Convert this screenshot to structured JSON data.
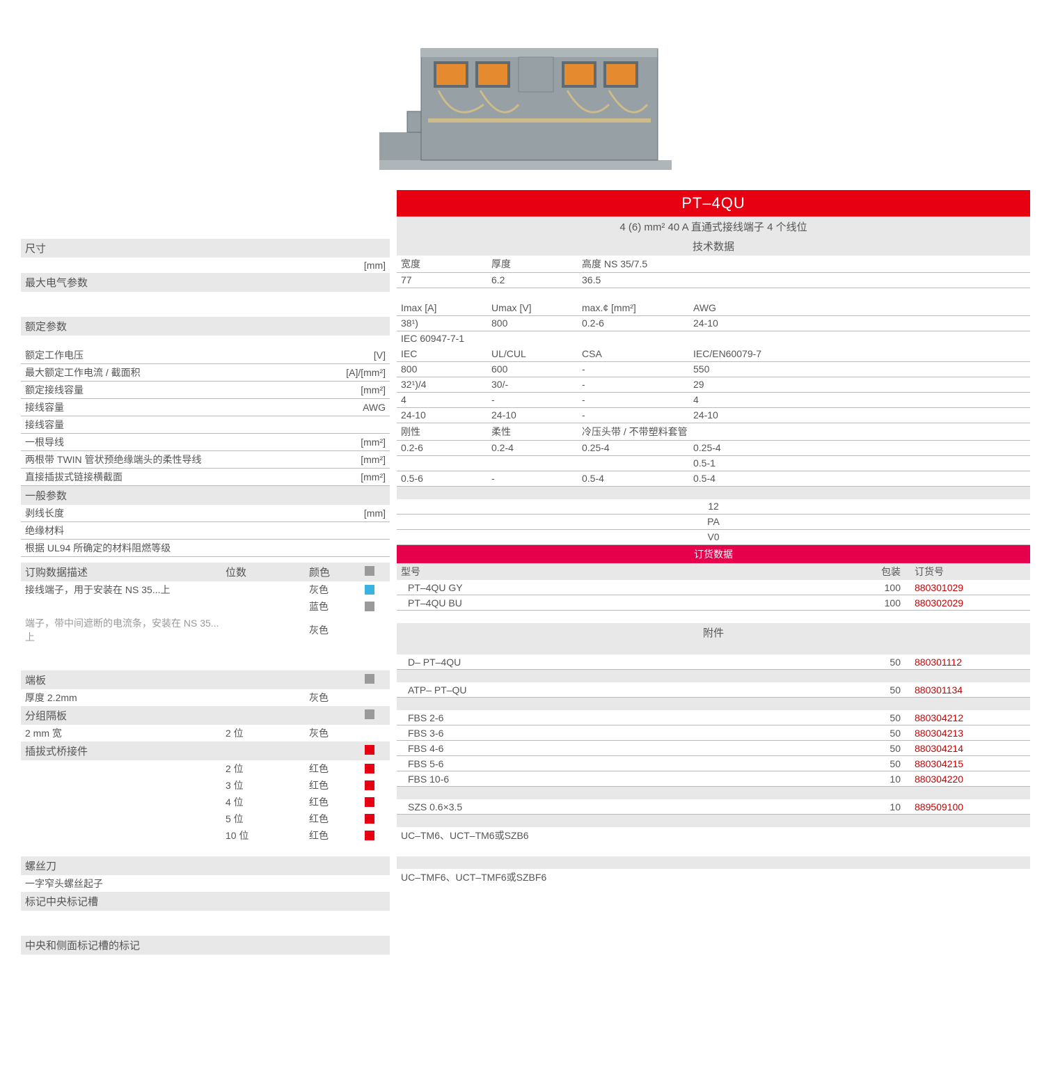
{
  "colors": {
    "title_bg": "#e60012",
    "pink_bg": "#e6004c",
    "gray_bg": "#e8e8e8",
    "text": "#555555",
    "partno": "#c00000",
    "border": "#bbbbbb",
    "swatch_gray": "#9a9a9a",
    "swatch_blue": "#3bb3e0",
    "swatch_red": "#e60012",
    "illus_body": "#96a0a5",
    "illus_body_light": "#aeb6ba",
    "illus_orange": "#e58a2e",
    "illus_dark": "#5f6b70"
  },
  "product": {
    "title": "PT–4QU",
    "subtitle": "4 (6) mm²  40 A  直通式接线端子  4 个线位"
  },
  "left": {
    "dim_header": "尺寸",
    "dim_unit": "[mm]",
    "elec_header": "最大电气参数",
    "rated_header": "额定参数",
    "rows1": [
      {
        "label": "额定工作电压",
        "unit": "[V]"
      },
      {
        "label": "最大额定工作电流 / 截面积",
        "unit": "[A]/[mm²]"
      },
      {
        "label": "额定接线容量",
        "unit": "[mm²]"
      },
      {
        "label": "接线容量",
        "unit": "AWG"
      },
      {
        "label": "接线容量",
        "unit": ""
      },
      {
        "label": "一根导线",
        "unit": "[mm²]"
      },
      {
        "label": "两根带 TWIN 管状预绝缘端头的柔性导线",
        "unit": "[mm²]"
      },
      {
        "label": "直接插拔式链接横截面",
        "unit": "[mm²]"
      }
    ],
    "gen_header": "一般参数",
    "rows2": [
      {
        "label": "剥线长度",
        "unit": "[mm]"
      },
      {
        "label": "绝缘材料",
        "unit": ""
      },
      {
        "label": "根据 UL94 所确定的材料阻燃等级",
        "unit": ""
      }
    ],
    "desc_head": {
      "d1": "订购数据描述",
      "d2": "位数",
      "d3": "颜色"
    },
    "desc_rows_top": [
      {
        "d1": "接线端子，用于安装在 NS 35...上",
        "d3": "灰色",
        "sw": "#3bb3e0"
      },
      {
        "d1": "",
        "d3": "蓝色",
        "sw": "#9a9a9a"
      },
      {
        "d1": "端子，带中间遮断的电流条，安装在 NS 35...上",
        "d3": "灰色",
        "sw": "",
        "light": true
      }
    ],
    "endplate_header": "端板",
    "endplate_row": {
      "d1": "厚度 2.2mm",
      "d3": "灰色"
    },
    "sep_header": "分组隔板",
    "sep_row": {
      "d1": "2 mm 宽",
      "d2": "2 位",
      "d3": "灰色"
    },
    "bridge_header": "插拔式桥接件",
    "bridge_rows": [
      {
        "d2": "2 位",
        "d3": "红色"
      },
      {
        "d2": "3 位",
        "d3": "红色"
      },
      {
        "d2": "4 位",
        "d3": "红色"
      },
      {
        "d2": "5 位",
        "d3": "红色"
      },
      {
        "d2": "10 位",
        "d3": "红色"
      }
    ],
    "screwdriver_header": "螺丝刀",
    "screwdriver_row": "一字窄头螺丝起子",
    "mark_center_header": "标记中央标记槽",
    "mark_side_header": "中央和侧面标记槽的标记"
  },
  "right": {
    "tech_header": "技术数据",
    "dim_rows": [
      {
        "c1": "宽度",
        "c2": "厚度",
        "c3": "高度 NS 35/7.5",
        "c4": ""
      },
      {
        "c1": "77",
        "c2": "6.2",
        "c3": "36.5",
        "c4": ""
      }
    ],
    "elec_rows": [
      {
        "c1": "Imax  [A]",
        "c2": "Umax  [V]",
        "c3": "max.¢  [mm²]",
        "c4": "AWG"
      },
      {
        "c1": "38¹)",
        "c2": "800",
        "c3": "0.2-6",
        "c4": "24-10"
      }
    ],
    "iec_label": "IEC 60947-7-1",
    "rated_rows": [
      {
        "c1": "IEC",
        "c2": "UL/CUL",
        "c3": "CSA",
        "c4": "IEC/EN60079-7"
      },
      {
        "c1": "800",
        "c2": "600",
        "c3": "-",
        "c4": "550"
      },
      {
        "c1": "32¹)/4",
        "c2": "30/-",
        "c3": "-",
        "c4": "29"
      },
      {
        "c1": "4",
        "c2": "-",
        "c3": "-",
        "c4": "4"
      },
      {
        "c1": "24-10",
        "c2": "24-10",
        "c3": "-",
        "c4": "24-10"
      },
      {
        "c1": "刚性",
        "c2": "柔性",
        "c3": "冷压头带 / 不带塑料套管",
        "c4": ""
      },
      {
        "c1": "0.2-6",
        "c2": "0.2-4",
        "c3": "0.25-4",
        "c4": "0.25-4"
      },
      {
        "c1": "",
        "c2": "",
        "c3": "",
        "c4": "0.5-1"
      },
      {
        "c1": "0.5-6",
        "c2": "-",
        "c3": "0.5-4",
        "c4": "0.5-4"
      }
    ],
    "gen_rows": [
      {
        "v": "12"
      },
      {
        "v": "PA"
      },
      {
        "v": "V0"
      }
    ],
    "order_header": "订货数据",
    "order_cols": {
      "model": "型号",
      "pkg": "包装",
      "partno": "订货号"
    },
    "order_rows": [
      {
        "model": "PT–4QU GY",
        "pkg": "100",
        "partno": "880301029"
      },
      {
        "model": "PT–4QU BU",
        "pkg": "100",
        "partno": "880302029"
      }
    ],
    "acc_header": "附件",
    "acc_rows1": [
      {
        "model": "D–  PT–4QU",
        "pkg": "50",
        "partno": "880301112"
      }
    ],
    "acc_rows2": [
      {
        "model": "ATP–  PT–QU",
        "pkg": "50",
        "partno": "880301134"
      }
    ],
    "acc_rows3": [
      {
        "model": "FBS 2-6",
        "pkg": "50",
        "partno": "880304212"
      },
      {
        "model": "FBS 3-6",
        "pkg": "50",
        "partno": "880304213"
      },
      {
        "model": "FBS 4-6",
        "pkg": "50",
        "partno": "880304214"
      },
      {
        "model": "FBS 5-6",
        "pkg": "50",
        "partno": "880304215"
      },
      {
        "model": "FBS 10-6",
        "pkg": "10",
        "partno": "880304220"
      }
    ],
    "acc_rows4": [
      {
        "model": "SZS 0.6×3.5",
        "pkg": "10",
        "partno": "889509100"
      }
    ],
    "mark1": "UC–TM6、UCT–TM6或SZB6",
    "mark2": "UC–TMF6、UCT–TMF6或SZBF6"
  }
}
